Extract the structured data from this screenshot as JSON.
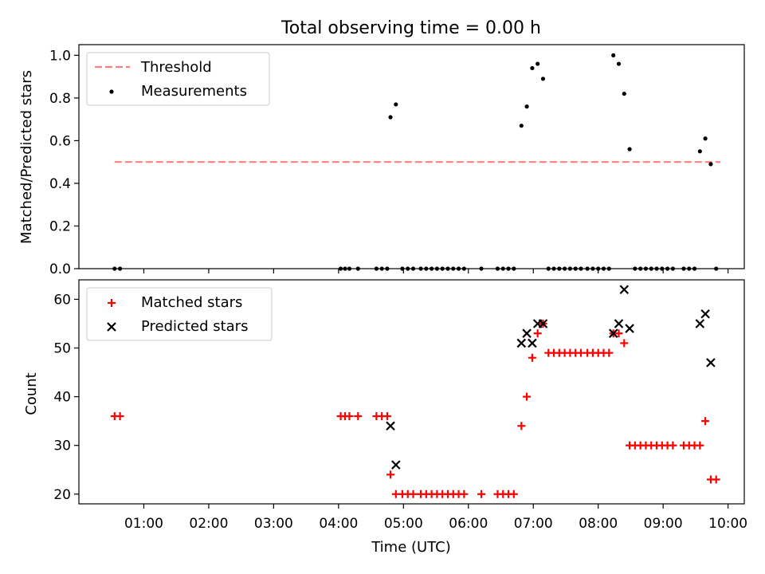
{
  "title": "Total observing time = 0.00 h",
  "chart_data": [
    {
      "type": "scatter",
      "ylabel": "Matched/Predicted stars",
      "ylim": [
        0,
        1.05
      ],
      "yticks": [
        0.0,
        0.2,
        0.4,
        0.6,
        0.8,
        1.0
      ],
      "ytick_labels": [
        "0.0",
        "0.2",
        "0.4",
        "0.6",
        "0.8",
        "1.0"
      ],
      "xlim_hours": [
        0.0,
        10.25
      ],
      "legend_position": "upper left",
      "threshold": {
        "name": "Threshold",
        "value": 0.5,
        "x_from": "00:33",
        "x_to": "09:53",
        "color": "#ff7f7f",
        "style": "dashed"
      },
      "series": [
        {
          "name": "Measurements",
          "color": "#000000",
          "marker": "dot",
          "points": [
            [
              "00:33",
              0.0
            ],
            [
              "00:38",
              0.0
            ],
            [
              "04:02",
              0.0
            ],
            [
              "04:06",
              0.0
            ],
            [
              "04:10",
              0.0
            ],
            [
              "04:18",
              0.0
            ],
            [
              "04:35",
              0.0
            ],
            [
              "04:40",
              0.0
            ],
            [
              "04:45",
              0.0
            ],
            [
              "04:48",
              0.71
            ],
            [
              "04:53",
              0.77
            ],
            [
              "04:59",
              0.0
            ],
            [
              "05:04",
              0.0
            ],
            [
              "05:09",
              0.0
            ],
            [
              "05:16",
              0.0
            ],
            [
              "05:21",
              0.0
            ],
            [
              "05:26",
              0.0
            ],
            [
              "05:31",
              0.0
            ],
            [
              "05:36",
              0.0
            ],
            [
              "05:41",
              0.0
            ],
            [
              "05:46",
              0.0
            ],
            [
              "05:51",
              0.0
            ],
            [
              "05:56",
              0.0
            ],
            [
              "06:12",
              0.0
            ],
            [
              "06:27",
              0.0
            ],
            [
              "06:32",
              0.0
            ],
            [
              "06:37",
              0.0
            ],
            [
              "06:42",
              0.0
            ],
            [
              "06:49",
              0.67
            ],
            [
              "06:54",
              0.76
            ],
            [
              "06:59",
              0.94
            ],
            [
              "07:04",
              0.96
            ],
            [
              "07:09",
              0.89
            ],
            [
              "07:14",
              0.0
            ],
            [
              "07:19",
              0.0
            ],
            [
              "07:24",
              0.0
            ],
            [
              "07:29",
              0.0
            ],
            [
              "07:34",
              0.0
            ],
            [
              "07:39",
              0.0
            ],
            [
              "07:44",
              0.0
            ],
            [
              "07:50",
              0.0
            ],
            [
              "07:55",
              0.0
            ],
            [
              "08:00",
              0.0
            ],
            [
              "08:05",
              0.0
            ],
            [
              "08:10",
              0.0
            ],
            [
              "08:14",
              1.0
            ],
            [
              "08:19",
              0.96
            ],
            [
              "08:24",
              0.82
            ],
            [
              "08:29",
              0.56
            ],
            [
              "08:34",
              0.0
            ],
            [
              "08:39",
              0.0
            ],
            [
              "08:44",
              0.0
            ],
            [
              "08:49",
              0.0
            ],
            [
              "08:54",
              0.0
            ],
            [
              "08:59",
              0.0
            ],
            [
              "09:04",
              0.0
            ],
            [
              "09:09",
              0.0
            ],
            [
              "09:19",
              0.0
            ],
            [
              "09:24",
              0.0
            ],
            [
              "09:29",
              0.0
            ],
            [
              "09:34",
              0.55
            ],
            [
              "09:39",
              0.61
            ],
            [
              "09:44",
              0.49
            ],
            [
              "09:49",
              0.0
            ]
          ]
        }
      ]
    },
    {
      "type": "scatter",
      "xlabel": "Time (UTC)",
      "ylabel": "Count",
      "ylim": [
        18,
        64
      ],
      "yticks": [
        20,
        30,
        40,
        50,
        60
      ],
      "ytick_labels": [
        "20",
        "30",
        "40",
        "50",
        "60"
      ],
      "xlim_hours": [
        0.0,
        10.25
      ],
      "xticks": [
        1,
        2,
        3,
        4,
        5,
        6,
        7,
        8,
        9,
        10
      ],
      "xtick_labels": [
        "01:00",
        "02:00",
        "03:00",
        "04:00",
        "05:00",
        "06:00",
        "07:00",
        "08:00",
        "09:00",
        "10:00"
      ],
      "legend_position": "upper left",
      "series": [
        {
          "name": "Matched stars",
          "color": "#ff0000",
          "marker": "plus",
          "points": [
            [
              "00:33",
              36
            ],
            [
              "00:38",
              36
            ],
            [
              "04:02",
              36
            ],
            [
              "04:06",
              36
            ],
            [
              "04:10",
              36
            ],
            [
              "04:18",
              36
            ],
            [
              "04:35",
              36
            ],
            [
              "04:40",
              36
            ],
            [
              "04:45",
              36
            ],
            [
              "04:48",
              24
            ],
            [
              "04:53",
              20
            ],
            [
              "04:59",
              20
            ],
            [
              "05:04",
              20
            ],
            [
              "05:09",
              20
            ],
            [
              "05:16",
              20
            ],
            [
              "05:21",
              20
            ],
            [
              "05:26",
              20
            ],
            [
              "05:31",
              20
            ],
            [
              "05:36",
              20
            ],
            [
              "05:41",
              20
            ],
            [
              "05:46",
              20
            ],
            [
              "05:51",
              20
            ],
            [
              "05:56",
              20
            ],
            [
              "06:12",
              20
            ],
            [
              "06:27",
              20
            ],
            [
              "06:32",
              20
            ],
            [
              "06:37",
              20
            ],
            [
              "06:42",
              20
            ],
            [
              "06:49",
              34
            ],
            [
              "06:54",
              40
            ],
            [
              "06:59",
              48
            ],
            [
              "07:04",
              53
            ],
            [
              "07:09",
              55
            ],
            [
              "07:14",
              49
            ],
            [
              "07:19",
              49
            ],
            [
              "07:24",
              49
            ],
            [
              "07:29",
              49
            ],
            [
              "07:34",
              49
            ],
            [
              "07:39",
              49
            ],
            [
              "07:44",
              49
            ],
            [
              "07:50",
              49
            ],
            [
              "07:55",
              49
            ],
            [
              "08:00",
              49
            ],
            [
              "08:05",
              49
            ],
            [
              "08:10",
              49
            ],
            [
              "08:14",
              53
            ],
            [
              "08:19",
              53
            ],
            [
              "08:24",
              51
            ],
            [
              "08:29",
              30
            ],
            [
              "08:34",
              30
            ],
            [
              "08:39",
              30
            ],
            [
              "08:44",
              30
            ],
            [
              "08:49",
              30
            ],
            [
              "08:54",
              30
            ],
            [
              "08:59",
              30
            ],
            [
              "09:04",
              30
            ],
            [
              "09:09",
              30
            ],
            [
              "09:19",
              30
            ],
            [
              "09:24",
              30
            ],
            [
              "09:29",
              30
            ],
            [
              "09:34",
              30
            ],
            [
              "09:39",
              35
            ],
            [
              "09:44",
              23
            ],
            [
              "09:49",
              23
            ]
          ]
        },
        {
          "name": "Predicted stars",
          "color": "#000000",
          "marker": "x",
          "points": [
            [
              "04:48",
              34
            ],
            [
              "04:53",
              26
            ],
            [
              "06:49",
              51
            ],
            [
              "06:54",
              53
            ],
            [
              "06:59",
              51
            ],
            [
              "07:04",
              55
            ],
            [
              "07:09",
              55
            ],
            [
              "08:14",
              53
            ],
            [
              "08:19",
              55
            ],
            [
              "08:24",
              62
            ],
            [
              "08:29",
              54
            ],
            [
              "09:34",
              55
            ],
            [
              "09:39",
              57
            ],
            [
              "09:44",
              47
            ]
          ]
        }
      ]
    }
  ]
}
